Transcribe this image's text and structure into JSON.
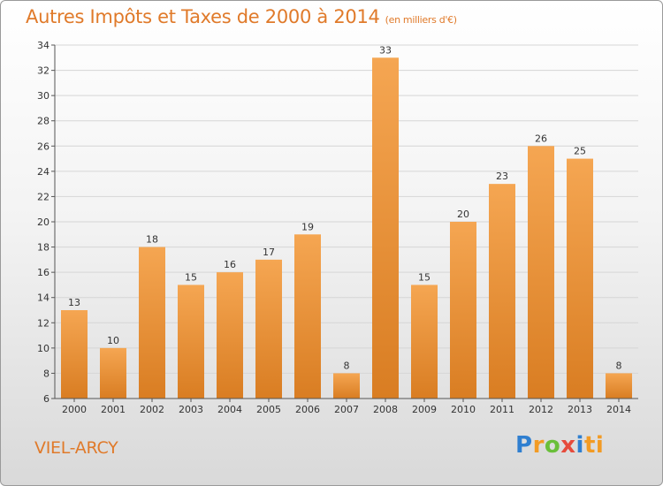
{
  "header": {
    "title": "Autres Impôts et Taxes de 2000 à 2014",
    "unit": "(en milliers d'€)"
  },
  "footer": {
    "town": "VIEL-ARCY",
    "logo": [
      "P",
      "r",
      "o",
      "x",
      "i",
      "ti"
    ]
  },
  "colors": {
    "bar_light": "#f5a652",
    "bar_dark": "#d97d22",
    "accent": "#e07a2a"
  },
  "chart_data": {
    "type": "bar",
    "title": "Autres Impôts et Taxes de 2000 à 2014",
    "xlabel": "",
    "ylabel": "",
    "categories": [
      "2000",
      "2001",
      "2002",
      "2003",
      "2004",
      "2005",
      "2006",
      "2007",
      "2008",
      "2009",
      "2010",
      "2011",
      "2012",
      "2013",
      "2014"
    ],
    "values": [
      13,
      10,
      18,
      15,
      16,
      17,
      19,
      8,
      33,
      15,
      20,
      23,
      26,
      25,
      8
    ],
    "ylim": [
      6,
      34
    ],
    "yticks": [
      6,
      8,
      10,
      12,
      14,
      16,
      18,
      20,
      22,
      24,
      26,
      28,
      30,
      32,
      34
    ],
    "grid": "horizontal"
  }
}
